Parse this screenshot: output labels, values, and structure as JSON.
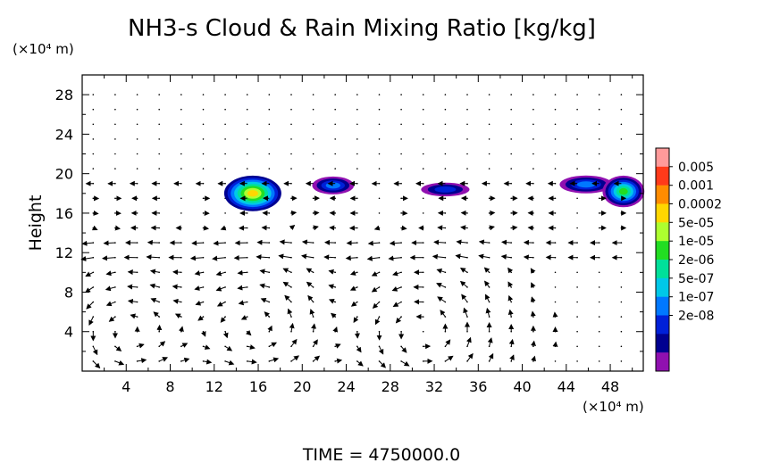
{
  "chart_data": {
    "type": "contour+vector",
    "title": "NH3-s Cloud & Rain Mixing Ratio [kg/kg]",
    "ylabel": "Height",
    "y_unit": "(×10⁴ m)",
    "x_unit": "(×10⁴ m)",
    "xlim": [
      0,
      51
    ],
    "ylim": [
      0,
      30
    ],
    "xticks": [
      "4",
      "8",
      "12",
      "16",
      "20",
      "24",
      "28",
      "32",
      "36",
      "40",
      "44",
      "48"
    ],
    "yticks": [
      "4",
      "8",
      "12",
      "16",
      "20",
      "24",
      "28"
    ],
    "colorbar": {
      "labels": [
        "0.005",
        "0.001",
        "0.0002",
        "5e-05",
        "1e-05",
        "2e-06",
        "5e-07",
        "1e-07",
        "2e-08"
      ],
      "colors": [
        "#ff9a9a",
        "#ff3a1a",
        "#ff8c00",
        "#ffd700",
        "#adff2f",
        "#22dd22",
        "#00e09a",
        "#00c8e8",
        "#0078ff",
        "#0020d8",
        "#000090",
        "#9010b0"
      ]
    },
    "cloud_regions": [
      {
        "x": 15.5,
        "y": 18.0,
        "level": "5e-05"
      },
      {
        "x": 22.5,
        "y": 18.8,
        "level": "2e-08"
      },
      {
        "x": 33.0,
        "y": 18.5,
        "level": "2e-08"
      },
      {
        "x": 45.5,
        "y": 18.8,
        "level": "2e-08"
      },
      {
        "x": 49.0,
        "y": 18.2,
        "level": "2e-06"
      }
    ]
  },
  "footer": {
    "time_label": "TIME = 4750000.0"
  }
}
